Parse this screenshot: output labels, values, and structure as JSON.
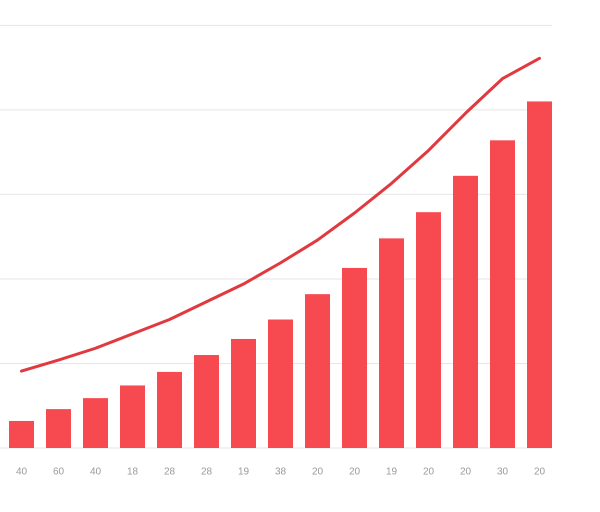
{
  "chart_data": {
    "type": "bar",
    "categories": [
      "40",
      "60",
      "40",
      "18",
      "28",
      "28",
      "19",
      "38",
      "20",
      "20",
      "19",
      "20",
      "20",
      "30",
      "20"
    ],
    "series": [
      {
        "type": "bar",
        "color": "#f74a50",
        "values": [
          0.32,
          0.46,
          0.59,
          0.74,
          0.9,
          1.1,
          1.29,
          1.52,
          1.82,
          2.13,
          2.48,
          2.79,
          3.22,
          3.64,
          4.1
        ]
      },
      {
        "type": "line",
        "color": "#e0393f",
        "values": [
          0.91,
          1.04,
          1.18,
          1.35,
          1.52,
          1.73,
          1.94,
          2.19,
          2.46,
          2.78,
          3.13,
          3.52,
          3.96,
          4.37,
          4.61
        ]
      }
    ],
    "ylim": [
      0,
      5.3
    ],
    "yticks": [
      0,
      1,
      2,
      3,
      4,
      5
    ],
    "grid": true
  }
}
